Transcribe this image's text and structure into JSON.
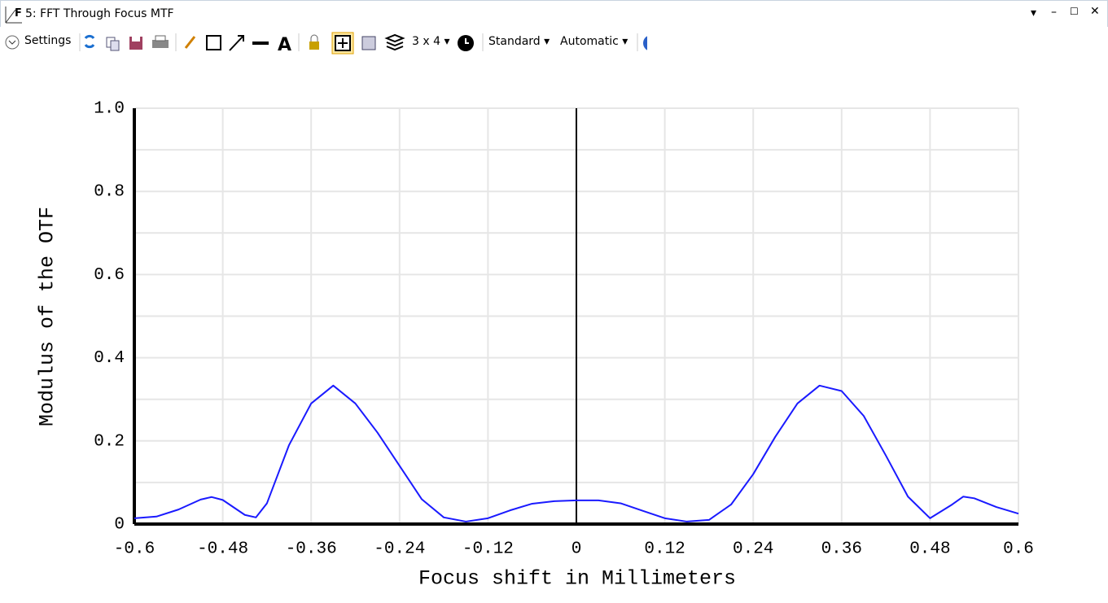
{
  "window": {
    "title": "5: FFT Through Focus MTF"
  },
  "toolbar": {
    "settings": "Settings",
    "layout": "3 x 4",
    "style": "Standard",
    "scale": "Automatic"
  },
  "chart_data": {
    "type": "line",
    "xlabel": "Focus shift in Millimeters",
    "ylabel": "Modulus of the OTF",
    "x": [
      -0.6,
      -0.57,
      -0.54,
      -0.51,
      -0.495,
      -0.48,
      -0.45,
      -0.435,
      -0.42,
      -0.39,
      -0.36,
      -0.33,
      -0.3,
      -0.27,
      -0.24,
      -0.21,
      -0.18,
      -0.15,
      -0.12,
      -0.09,
      -0.06,
      -0.03,
      0,
      0.03,
      0.06,
      0.09,
      0.12,
      0.15,
      0.18,
      0.21,
      0.24,
      0.27,
      0.3,
      0.33,
      0.36,
      0.39,
      0.42,
      0.45,
      0.48,
      0.51,
      0.525,
      0.54,
      0.57,
      0.6
    ],
    "series": [
      {
        "color": "#1a1aff",
        "values": [
          0.014,
          0.018,
          0.035,
          0.059,
          0.065,
          0.058,
          0.022,
          0.016,
          0.05,
          0.19,
          0.29,
          0.333,
          0.29,
          0.22,
          0.14,
          0.06,
          0.016,
          0.006,
          0.014,
          0.033,
          0.049,
          0.055,
          0.057,
          0.057,
          0.05,
          0.032,
          0.014,
          0.006,
          0.01,
          0.047,
          0.12,
          0.21,
          0.29,
          0.333,
          0.32,
          0.26,
          0.165,
          0.066,
          0.014,
          0.047,
          0.066,
          0.062,
          0.041,
          0.025
        ]
      }
    ],
    "xlim": [
      -0.6,
      0.6
    ],
    "ylim": [
      0,
      1
    ],
    "xticks": [
      -0.6,
      -0.48,
      -0.36,
      -0.24,
      -0.12,
      0,
      0.12,
      0.24,
      0.36,
      0.48,
      0.6
    ],
    "yticks": [
      0,
      0.2,
      0.4,
      0.6,
      0.8,
      {
        "value": 1,
        "label": "1.0"
      }
    ],
    "yminor": [
      0.1,
      0.3,
      0.5,
      0.7,
      0.9
    ],
    "grid": true
  }
}
